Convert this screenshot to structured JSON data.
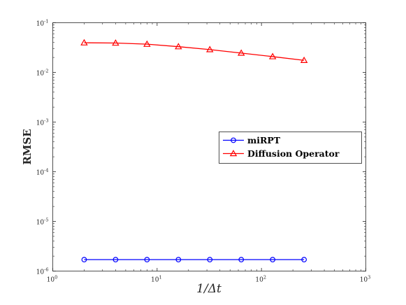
{
  "chart_data": {
    "type": "line",
    "xlabel": "1/Δt",
    "ylabel": "RMSE",
    "xscale": "log",
    "yscale": "log",
    "xlim": [
      1,
      1000
    ],
    "ylim": [
      1e-06,
      0.1
    ],
    "grid": false,
    "legend_position": "center-right",
    "x": [
      2,
      4,
      8,
      16,
      32,
      64,
      128,
      256
    ],
    "series": [
      {
        "name": "miRPT",
        "color": "#0000ff",
        "marker": "circle",
        "values": [
          1.7e-06,
          1.7e-06,
          1.7e-06,
          1.7e-06,
          1.7e-06,
          1.7e-06,
          1.7e-06,
          1.7e-06
        ]
      },
      {
        "name": "Diffusion Operator",
        "color": "#ff0000",
        "marker": "triangle",
        "values": [
          0.0395,
          0.039,
          0.037,
          0.033,
          0.0288,
          0.0245,
          0.0208,
          0.0175
        ]
      }
    ],
    "x_ticks": [
      {
        "base": "10",
        "exp": "0"
      },
      {
        "base": "10",
        "exp": "1"
      },
      {
        "base": "10",
        "exp": "2"
      },
      {
        "base": "10",
        "exp": "3"
      }
    ],
    "y_ticks": [
      {
        "base": "10",
        "exp": "-6"
      },
      {
        "base": "10",
        "exp": "-5"
      },
      {
        "base": "10",
        "exp": "-4"
      },
      {
        "base": "10",
        "exp": "-3"
      },
      {
        "base": "10",
        "exp": "-2"
      },
      {
        "base": "10",
        "exp": "-1"
      }
    ]
  }
}
